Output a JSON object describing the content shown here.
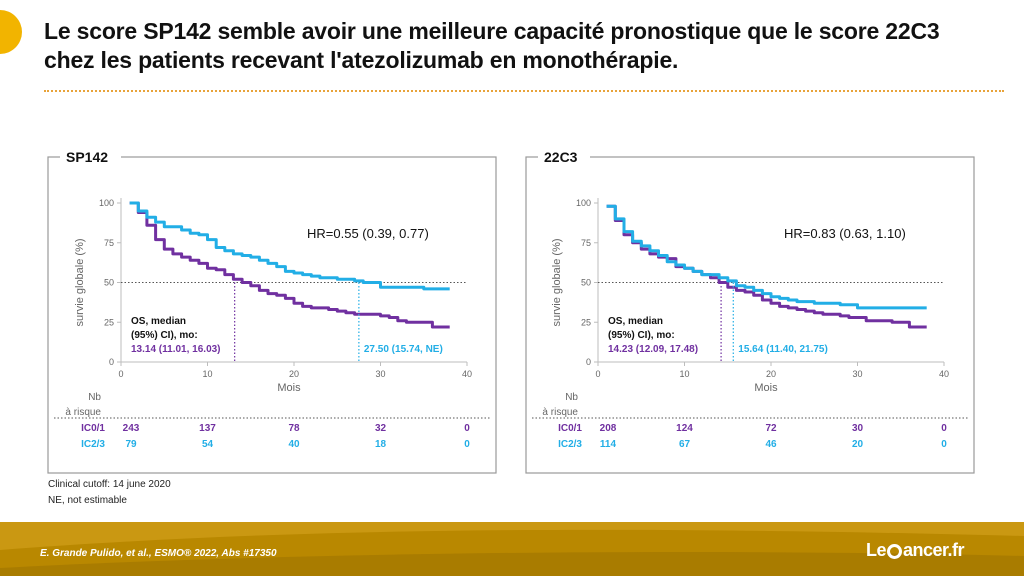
{
  "slide": {
    "title": "Le score SP142 semble avoir une meilleure capacité pronostique que le score 22C3 chez les patients recevant l'atezolizumab en monothérapie.",
    "footnotes": [
      "Clinical cutoff: 14 june 2020",
      "NE, not estimable"
    ],
    "citation": "E. Grande Pulido, et al.,  ESMO® 2022, Abs #17350",
    "brand": {
      "prefix": "Le",
      "suffix": "ancer.fr"
    }
  },
  "colors": {
    "ic01": "#7030a0",
    "ic23": "#22aee6",
    "accent": "#f2b400",
    "footer": "#b98800"
  },
  "chart_data": [
    {
      "type": "line",
      "title": "SP142",
      "xlabel": "Mois",
      "ylabel": "survie globale (%)",
      "xlim": [
        0,
        40
      ],
      "ylim": [
        0,
        100
      ],
      "xticks": [
        0,
        10,
        20,
        30,
        40
      ],
      "yticks": [
        0,
        25,
        50,
        75,
        100
      ],
      "reference_line_y": 50,
      "hr_label": "HR=0.55 (0.39, 0.77)",
      "median_title": [
        "OS, median",
        "(95%) CI), mo:"
      ],
      "series": [
        {
          "name": "IC0/1",
          "median_label": "13.14 (11.01, 16.03)",
          "median": 13.14,
          "x": [
            1,
            2,
            3,
            4,
            5,
            6,
            7,
            8,
            9,
            10,
            11,
            12,
            13,
            14,
            15,
            16,
            17,
            18,
            19,
            20,
            21,
            22,
            23,
            24,
            25,
            26,
            27,
            28,
            29,
            30,
            31,
            32,
            33,
            34,
            35,
            36,
            37,
            38
          ],
          "y": [
            100,
            94,
            86,
            77,
            71,
            68,
            66,
            64,
            62,
            59,
            58,
            55,
            52,
            50,
            48,
            45,
            43,
            42,
            40,
            37,
            35,
            34,
            34,
            33,
            32,
            31,
            30,
            30,
            30,
            29,
            28,
            26,
            25,
            25,
            25,
            22,
            22,
            22
          ]
        },
        {
          "name": "IC2/3",
          "median_label": "27.50 (15.74, NE)",
          "median": 27.5,
          "x": [
            1,
            2,
            3,
            4,
            5,
            6,
            7,
            8,
            9,
            10,
            11,
            12,
            13,
            14,
            15,
            16,
            17,
            18,
            19,
            20,
            21,
            22,
            23,
            24,
            25,
            26,
            27,
            28,
            29,
            30,
            31,
            32,
            33,
            34,
            35,
            36,
            37,
            38
          ],
          "y": [
            100,
            95,
            91,
            88,
            85,
            85,
            83,
            81,
            80,
            77,
            72,
            70,
            68,
            67,
            66,
            64,
            62,
            60,
            57,
            56,
            55,
            54,
            53,
            53,
            52,
            52,
            51,
            50,
            50,
            47,
            47,
            47,
            47,
            47,
            46,
            46,
            46,
            46
          ]
        }
      ],
      "risk_table": {
        "header": [
          "Nb",
          "à risque"
        ],
        "x": [
          0,
          10,
          20,
          30,
          40
        ],
        "rows": [
          {
            "label": "IC0/1",
            "values": [
              "243",
              "137",
              "78",
              "32",
              "0"
            ]
          },
          {
            "label": "IC2/3",
            "values": [
              "79",
              "54",
              "40",
              "18",
              "0"
            ]
          }
        ]
      }
    },
    {
      "type": "line",
      "title": "22C3",
      "xlabel": "Mois",
      "ylabel": "survie globale (%)",
      "xlim": [
        0,
        40
      ],
      "ylim": [
        0,
        100
      ],
      "xticks": [
        0,
        10,
        20,
        30,
        40
      ],
      "yticks": [
        0,
        25,
        50,
        75,
        100
      ],
      "reference_line_y": 50,
      "hr_label": "HR=0.83 (0.63, 1.10)",
      "median_title": [
        "OS, median",
        "(95%) CI), mo:"
      ],
      "series": [
        {
          "name": "IC0/1",
          "median_label": "14.23 (12.09, 17.48)",
          "median": 14.23,
          "x": [
            1,
            2,
            3,
            4,
            5,
            6,
            7,
            8,
            9,
            10,
            11,
            12,
            13,
            14,
            15,
            16,
            17,
            18,
            19,
            20,
            21,
            22,
            23,
            24,
            25,
            26,
            27,
            28,
            29,
            30,
            31,
            32,
            33,
            34,
            35,
            36,
            37,
            38
          ],
          "y": [
            98,
            89,
            80,
            75,
            71,
            68,
            66,
            65,
            60,
            59,
            57,
            55,
            53,
            50,
            47,
            45,
            44,
            42,
            39,
            37,
            35,
            34,
            33,
            32,
            31,
            30,
            30,
            29,
            28,
            28,
            26,
            26,
            26,
            25,
            25,
            22,
            22,
            22
          ]
        },
        {
          "name": "IC2/3",
          "median_label": "15.64 (11.40, 21.75)",
          "median": 15.64,
          "x": [
            1,
            2,
            3,
            4,
            5,
            6,
            7,
            8,
            9,
            10,
            11,
            12,
            13,
            14,
            15,
            16,
            17,
            18,
            19,
            20,
            21,
            22,
            23,
            24,
            25,
            26,
            27,
            28,
            29,
            30,
            31,
            32,
            33,
            34,
            35,
            36,
            37,
            38
          ],
          "y": [
            98,
            90,
            82,
            76,
            73,
            70,
            67,
            63,
            61,
            59,
            57,
            55,
            55,
            53,
            51,
            48,
            47,
            45,
            43,
            41,
            40,
            39,
            38,
            38,
            37,
            37,
            37,
            36,
            36,
            34,
            34,
            34,
            34,
            34,
            34,
            34,
            34,
            34
          ]
        }
      ],
      "risk_table": {
        "header": [
          "Nb",
          "à risque"
        ],
        "x": [
          0,
          10,
          20,
          30,
          40
        ],
        "rows": [
          {
            "label": "IC0/1",
            "values": [
              "208",
              "124",
              "72",
              "30",
              "0"
            ]
          },
          {
            "label": "IC2/3",
            "values": [
              "114",
              "67",
              "46",
              "20",
              "0"
            ]
          }
        ]
      }
    }
  ]
}
